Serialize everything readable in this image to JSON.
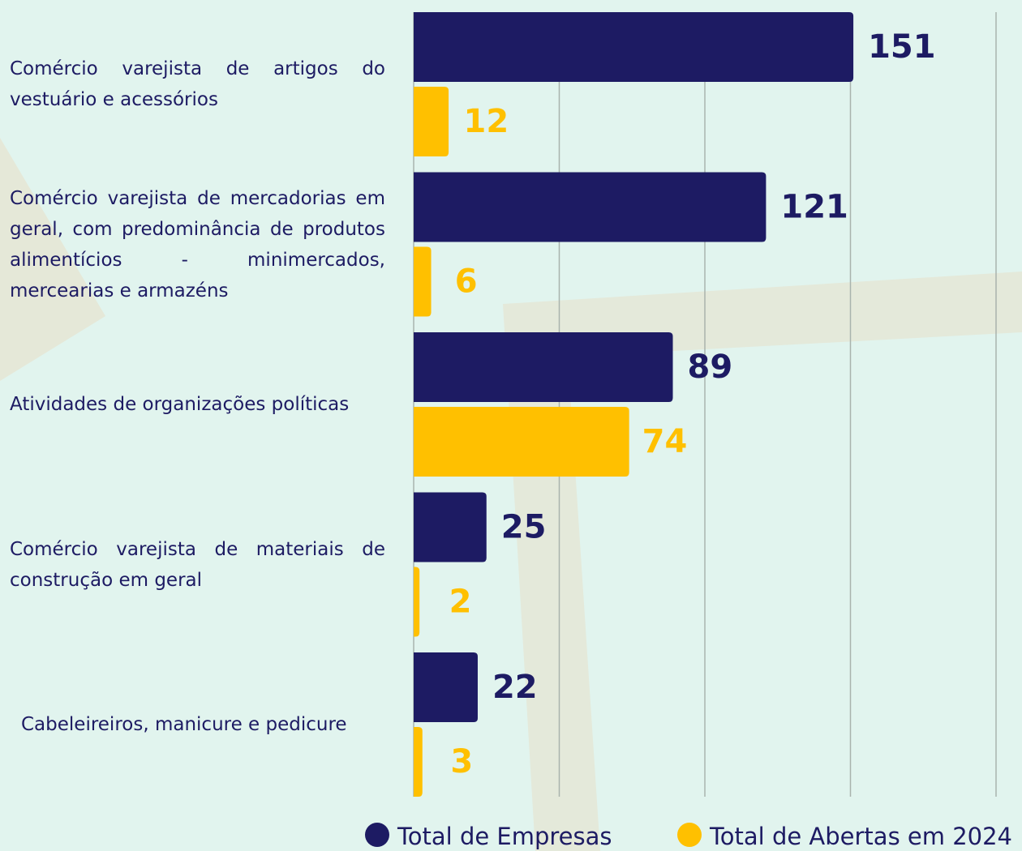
{
  "chart_data": {
    "type": "bar",
    "orientation": "horizontal",
    "categories": [
      "Comércio varejista de artigos do vestuário e acessórios",
      "Comércio varejista de mercadorias em geral, com predominância de produtos alimentícios - minimercados, mercearias e armazéns",
      "Atividades de organizações políticas",
      "Comércio varejista de materiais de construção em geral",
      "Cabeleireiros, manicure e pedicure"
    ],
    "series": [
      {
        "name": "Total de Empresas",
        "color": "#1d1b63",
        "values": [
          151,
          121,
          89,
          25,
          22
        ]
      },
      {
        "name": "Total de Abertas em 2024",
        "color": "#ffc000",
        "values": [
          12,
          6,
          74,
          2,
          3
        ]
      }
    ],
    "xlim": [
      0,
      200
    ],
    "xticks": [
      0,
      50,
      100,
      150,
      200
    ],
    "grid": true,
    "legend": "bottom"
  }
}
